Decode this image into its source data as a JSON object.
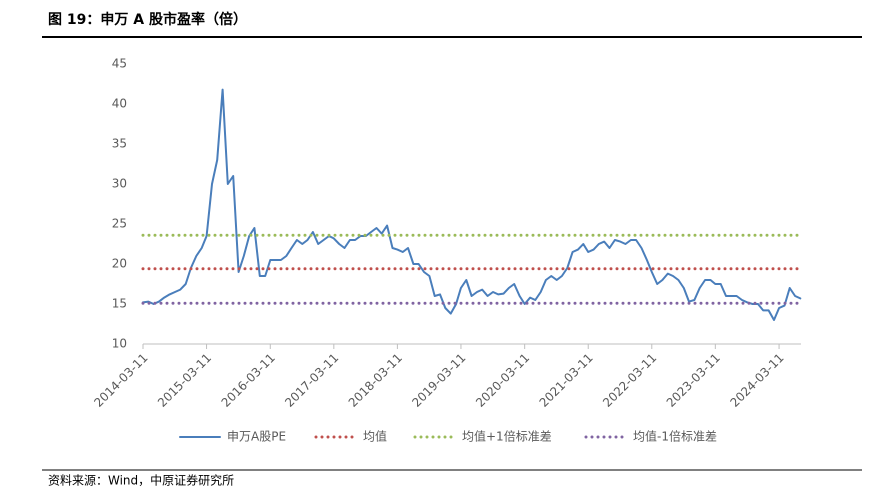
{
  "chart_data": {
    "type": "line",
    "title": "图 19：申万 A 股市盈率（倍）",
    "source": "资料来源：Wind，中原证券研究所",
    "x": [
      "2014-03-11",
      "2014-04-11",
      "2014-05-11",
      "2014-06-11",
      "2014-07-11",
      "2014-08-11",
      "2014-09-11",
      "2014-10-11",
      "2014-11-11",
      "2014-12-11",
      "2015-01-11",
      "2015-02-11",
      "2015-03-11",
      "2015-04-11",
      "2015-05-11",
      "2015-06-11",
      "2015-07-11",
      "2015-08-11",
      "2015-09-11",
      "2015-10-11",
      "2015-11-11",
      "2015-12-11",
      "2016-01-11",
      "2016-02-11",
      "2016-03-11",
      "2016-04-11",
      "2016-05-11",
      "2016-06-11",
      "2016-07-11",
      "2016-08-11",
      "2016-09-11",
      "2016-10-11",
      "2016-11-11",
      "2016-12-11",
      "2017-01-11",
      "2017-02-11",
      "2017-03-11",
      "2017-04-11",
      "2017-05-11",
      "2017-06-11",
      "2017-07-11",
      "2017-08-11",
      "2017-09-11",
      "2017-10-11",
      "2017-11-11",
      "2017-12-11",
      "2018-01-11",
      "2018-02-11",
      "2018-03-11",
      "2018-04-11",
      "2018-05-11",
      "2018-06-11",
      "2018-07-11",
      "2018-08-11",
      "2018-09-11",
      "2018-10-11",
      "2018-11-11",
      "2018-12-11",
      "2019-01-11",
      "2019-02-11",
      "2019-03-11",
      "2019-04-11",
      "2019-05-11",
      "2019-06-11",
      "2019-07-11",
      "2019-08-11",
      "2019-09-11",
      "2019-10-11",
      "2019-11-11",
      "2019-12-11",
      "2020-01-11",
      "2020-02-11",
      "2020-03-11",
      "2020-04-11",
      "2020-05-11",
      "2020-06-11",
      "2020-07-11",
      "2020-08-11",
      "2020-09-11",
      "2020-10-11",
      "2020-11-11",
      "2020-12-11",
      "2021-01-11",
      "2021-02-11",
      "2021-03-11",
      "2021-04-11",
      "2021-05-11",
      "2021-06-11",
      "2021-07-11",
      "2021-08-11",
      "2021-09-11",
      "2021-10-11",
      "2021-11-11",
      "2021-12-11",
      "2022-01-11",
      "2022-02-11",
      "2022-03-11",
      "2022-04-11",
      "2022-05-11",
      "2022-06-11",
      "2022-07-11",
      "2022-08-11",
      "2022-09-11",
      "2022-10-11",
      "2022-11-11",
      "2022-12-11",
      "2023-01-11",
      "2023-02-11",
      "2023-03-11",
      "2023-04-11",
      "2023-05-11",
      "2023-06-11",
      "2023-07-11",
      "2023-08-11",
      "2023-09-11",
      "2023-10-11",
      "2023-11-11",
      "2023-12-11",
      "2024-01-11",
      "2024-02-11",
      "2024-03-11",
      "2024-04-11",
      "2024-05-11",
      "2024-06-11",
      "2024-07-11"
    ],
    "series": [
      {
        "name": "申万A股PE",
        "color": "#4a7ebb",
        "style": "solid",
        "values": [
          15.2,
          15.3,
          15.0,
          15.3,
          15.8,
          16.2,
          16.5,
          16.8,
          17.5,
          19.5,
          21,
          22,
          23.5,
          30,
          33,
          41.8,
          30,
          31,
          19,
          21,
          23.5,
          24.5,
          18.5,
          18.5,
          20.5,
          20.5,
          20.5,
          21,
          22,
          23,
          22.5,
          23,
          24,
          22.5,
          23,
          23.5,
          23.2,
          22.5,
          22,
          23,
          23,
          23.5,
          23.5,
          24,
          24.5,
          23.8,
          24.8,
          22,
          21.8,
          21.5,
          22,
          20,
          20,
          19,
          18.5,
          16,
          16.2,
          14.5,
          13.8,
          15,
          17,
          18,
          16,
          16.5,
          16.8,
          16,
          16.5,
          16.2,
          16.3,
          17,
          17.5,
          16,
          15,
          15.8,
          15.5,
          16.5,
          18,
          18.5,
          18,
          18.5,
          19.5,
          21.5,
          21.8,
          22.5,
          21.5,
          21.8,
          22.5,
          22.8,
          22,
          23,
          22.8,
          22.5,
          23,
          23,
          22,
          20.5,
          19,
          17.5,
          18,
          18.8,
          18.5,
          18,
          17,
          15.3,
          15.5,
          17,
          18,
          18,
          17.5,
          17.5,
          16,
          16,
          16,
          15.5,
          15.2,
          15,
          15,
          14.2,
          14.2,
          13,
          14.5,
          14.8,
          17,
          16,
          15.7
        ]
      },
      {
        "name": "均值",
        "color": "#c0504d",
        "style": "dotted",
        "x": [
          "2014-03-11",
          "2024-07-15"
        ],
        "values": [
          19.4,
          19.4
        ]
      },
      {
        "name": "均值+1倍标准差",
        "color": "#9bbb59",
        "style": "dotted",
        "x": [
          "2014-03-11",
          "2024-07-15"
        ],
        "values": [
          23.6,
          23.6
        ]
      },
      {
        "name": "均值-1倍标准差",
        "color": "#8064a2",
        "style": "dotted",
        "x": [
          "2014-03-11",
          "2024-07-15"
        ],
        "values": [
          15.1,
          15.1
        ]
      }
    ],
    "xlim": [
      "2014-03-11",
      "2024-07-15"
    ],
    "xticks": [
      "2014-03-11",
      "2015-03-11",
      "2016-03-11",
      "2017-03-11",
      "2018-03-11",
      "2019-03-11",
      "2020-03-11",
      "2021-03-11",
      "2022-03-11",
      "2023-03-11",
      "2024-03-11"
    ],
    "ylim": [
      10,
      45
    ],
    "yticks": [
      10,
      15,
      20,
      25,
      30,
      35,
      40,
      45
    ],
    "legend": "bottom"
  }
}
